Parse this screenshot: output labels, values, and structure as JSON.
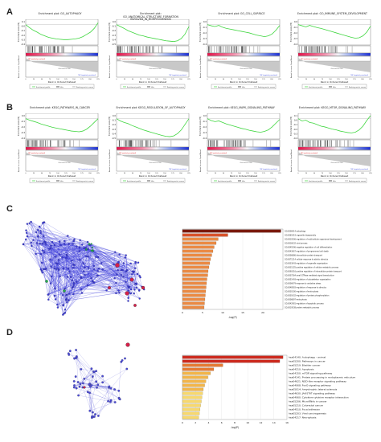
{
  "panels": {
    "a": "A",
    "b": "B",
    "c": "C",
    "d": "D"
  },
  "gsea_common": {
    "es_label": "Enrichment score (ES)",
    "metric_label": "Ranked list metric (Signal2Noise)",
    "x_label": "Rank in Ordered Dataset",
    "legend": [
      "Enrichment profile",
      "Hits",
      "Ranking metric scores"
    ],
    "zero_cross": "Zero cross at 7050",
    "positive_tag": "'HE' (positively correlated)",
    "negative_tag": "'NE' (negatively correlated)",
    "x_ticks": [
      "0",
      "25",
      "50",
      "75",
      "100",
      "125",
      "150",
      "175",
      "200",
      "225"
    ]
  },
  "gsea_plots": [
    {
      "title_lines": [
        "Enrichment plot: GO_AUTOPHAGY"
      ],
      "es_ticks": [
        "0.1",
        "-0.0",
        "-0.1",
        "-0.2",
        "-0.3",
        "-0.4"
      ],
      "curve": [
        0,
        -0.08,
        -0.15,
        -0.2,
        -0.26,
        -0.3,
        -0.34,
        -0.36,
        -0.38,
        -0.39,
        -0.4,
        -0.4,
        -0.39,
        -0.38,
        -0.36,
        -0.32,
        -0.26,
        -0.2,
        -0.1,
        0.05
      ]
    },
    {
      "title_lines": [
        "Enrichment plot:",
        "GO_ANATOMICAL_STRUCTURE_FORMATION",
        "INVOLVED_IN_MORPHOGENESIS"
      ],
      "es_ticks": [
        "0.0",
        "-0.1",
        "-0.2",
        "-0.3",
        "-0.4",
        "-0.5"
      ],
      "curve": [
        0,
        -0.05,
        -0.1,
        -0.16,
        -0.2,
        -0.24,
        -0.28,
        -0.3,
        -0.33,
        -0.35,
        -0.37,
        -0.39,
        -0.41,
        -0.43,
        -0.44,
        -0.45,
        -0.43,
        -0.37,
        -0.25,
        -0.05
      ]
    },
    {
      "title_lines": [
        "Enrichment plot: GO_CELL_SURFACE"
      ],
      "es_ticks": [
        "0.0",
        "-0.1",
        "-0.2",
        "-0.3",
        "-0.4"
      ],
      "curve": [
        0,
        -0.03,
        -0.05,
        -0.02,
        -0.07,
        -0.1,
        -0.12,
        -0.14,
        -0.16,
        -0.18,
        -0.2,
        -0.22,
        -0.25,
        -0.28,
        -0.3,
        -0.32,
        -0.3,
        -0.25,
        -0.15,
        -0.02
      ]
    },
    {
      "title_lines": [
        "Enrichment plot: GO_IMMUNE_SYSTEM_DEVELOPMENT"
      ],
      "es_ticks": [
        "0.0",
        "-0.1",
        "-0.2",
        "-0.3",
        "-0.4"
      ],
      "curve": [
        0,
        -0.03,
        -0.06,
        -0.02,
        -0.05,
        -0.08,
        -0.1,
        -0.13,
        -0.16,
        -0.19,
        -0.22,
        -0.25,
        -0.28,
        -0.31,
        -0.34,
        -0.36,
        -0.35,
        -0.3,
        -0.2,
        -0.04
      ]
    },
    {
      "title_lines": [
        "Enrichment plot: KEGG_PATHWAYS_IN_CANCER"
      ],
      "es_ticks": [
        "0.0",
        "-0.1",
        "-0.2",
        "-0.3",
        "-0.4"
      ],
      "curve": [
        0,
        -0.04,
        -0.07,
        -0.1,
        -0.14,
        -0.17,
        -0.2,
        -0.23,
        -0.25,
        -0.27,
        -0.29,
        -0.31,
        -0.33,
        -0.34,
        -0.35,
        -0.33,
        -0.28,
        -0.2,
        -0.1,
        0
      ]
    },
    {
      "title_lines": [
        "Enrichment plot: KEGG_REGULATION_OF_AUTOPHAGY"
      ],
      "es_ticks": [
        "0.0",
        "-0.1",
        "-0.2",
        "-0.3",
        "-0.4",
        "-0.5"
      ],
      "curve": [
        0,
        -0.06,
        -0.1,
        -0.13,
        -0.18,
        -0.22,
        -0.26,
        -0.3,
        -0.33,
        -0.36,
        -0.39,
        -0.42,
        -0.45,
        -0.47,
        -0.48,
        -0.46,
        -0.4,
        -0.3,
        -0.15,
        0
      ]
    },
    {
      "title_lines": [
        "Enrichment plot: KEGG_MAPK_SIGNALING_PATHWAY"
      ],
      "es_ticks": [
        "0.0",
        "-0.1",
        "-0.2",
        "-0.3",
        "-0.4"
      ],
      "curve": [
        0,
        -0.05,
        -0.08,
        -0.06,
        -0.1,
        -0.14,
        -0.17,
        -0.2,
        -0.23,
        -0.26,
        -0.28,
        -0.31,
        -0.33,
        -0.35,
        -0.36,
        -0.34,
        -0.3,
        -0.22,
        -0.12,
        -0.02
      ]
    },
    {
      "title_lines": [
        "Enrichment plot: KEGG_MTOR_SIGNALING_PATHWAY"
      ],
      "es_ticks": [
        "0.1",
        "0.0",
        "-0.1",
        "-0.2",
        "-0.3",
        "-0.4"
      ],
      "curve": [
        0,
        -0.06,
        -0.04,
        -0.1,
        -0.12,
        -0.16,
        -0.2,
        -0.22,
        -0.25,
        -0.28,
        -0.3,
        -0.33,
        -0.35,
        -0.37,
        -0.38,
        -0.36,
        -0.3,
        -0.2,
        -0.05,
        0.08
      ]
    }
  ],
  "network_c": {
    "node_color": "#3a3adb",
    "highlight_color": "#d6204a",
    "alt_color": "#21b04b"
  },
  "network_d": {
    "node_color": "#4a4ad6",
    "highlight_color": "#d6204a"
  },
  "chart_data": [
    {
      "type": "bar",
      "orientation": "horizontal",
      "categories": [
        "GO:0006914 autophagy",
        "GO:0061919 organelle disassembly",
        "GO:0010506 regulation of multicellular organismal development",
        "GO:0016032 viral process",
        "GO:0045596 negative regulation of cell differentiation",
        "GO:0043067 regulation of programmed cell death",
        "GO:0006886 intracellular protein transport",
        "GO:0071214 cellular response to abiotic stimulus",
        "GO:0033043 regulation of organelle organization",
        "GO:0031325 positive regulation of cellular metabolic process",
        "GO:0090316 positive regulation of intracellular protein transport",
        "GO:0007264 small GTPase mediated signal transduction",
        "GO:0051493 regulation of cytoskeleton organization",
        "GO:0006979 response to oxidative stress",
        "GO:0048583 regulation of response to stimulus",
        "GO:0030100 regulation of endocytosis",
        "GO:0001932 regulation of protein phosphorylation",
        "GO:0006897 endocytosis",
        "GO:0042981 regulation of apoptotic process",
        "GO:0019538 protein metabolic process"
      ],
      "values": [
        24.5,
        11.3,
        8.9,
        8.4,
        7.9,
        7.6,
        7.3,
        7.0,
        6.8,
        6.6,
        6.4,
        6.3,
        6.1,
        6.0,
        5.9,
        5.8,
        5.7,
        5.6,
        5.5,
        5.4
      ],
      "xlabel": "-log(P)",
      "xlim": [
        0,
        25
      ],
      "x_ticks": [
        "0",
        "5",
        "10",
        "15",
        "20"
      ],
      "colors": [
        "#7a1a0d",
        "#d9522a",
        "#ea8a44"
      ]
    },
    {
      "type": "bar",
      "orientation": "horizontal",
      "categories": [
        "hsa04140: Autophagy - animal",
        "hsa05200: Pathways in cancer",
        "hsa05219: Bladder cancer",
        "hsa04210: Apoptosis",
        "hsa04150: mTOR signaling pathway",
        "hsa04141: Protein processing in endoplasmic reticulum",
        "hsa04621: NOD-like receptor signaling pathway",
        "hsa04068: FoxO signaling pathway",
        "hsa05014: Amyotrophic lateral sclerosis",
        "hsa04630: JAK-STAT signaling pathway",
        "hsa04060: Cytokine-cytokine receptor interaction",
        "hsa05206: MicroRNAs in cancer",
        "hsa05210: Colorectal cancer",
        "hsa04510: Focal adhesion",
        "hsa05203: Viral carcinogenesis",
        "hsa04217: Necroptosis"
      ],
      "values": [
        15.4,
        14.9,
        6.2,
        4.8,
        4.3,
        3.9,
        3.6,
        3.4,
        3.2,
        3.1,
        3.0,
        2.9,
        2.8,
        2.7,
        2.6,
        2.5
      ],
      "xlabel": "-log(P)",
      "xlim": [
        0,
        16
      ],
      "x_ticks": [
        "0",
        "2",
        "4",
        "6",
        "8",
        "10",
        "12",
        "14",
        "16"
      ],
      "colors": [
        "#cc2a1e",
        "#e57a33",
        "#f2b54a",
        "#f7d86e"
      ]
    }
  ]
}
